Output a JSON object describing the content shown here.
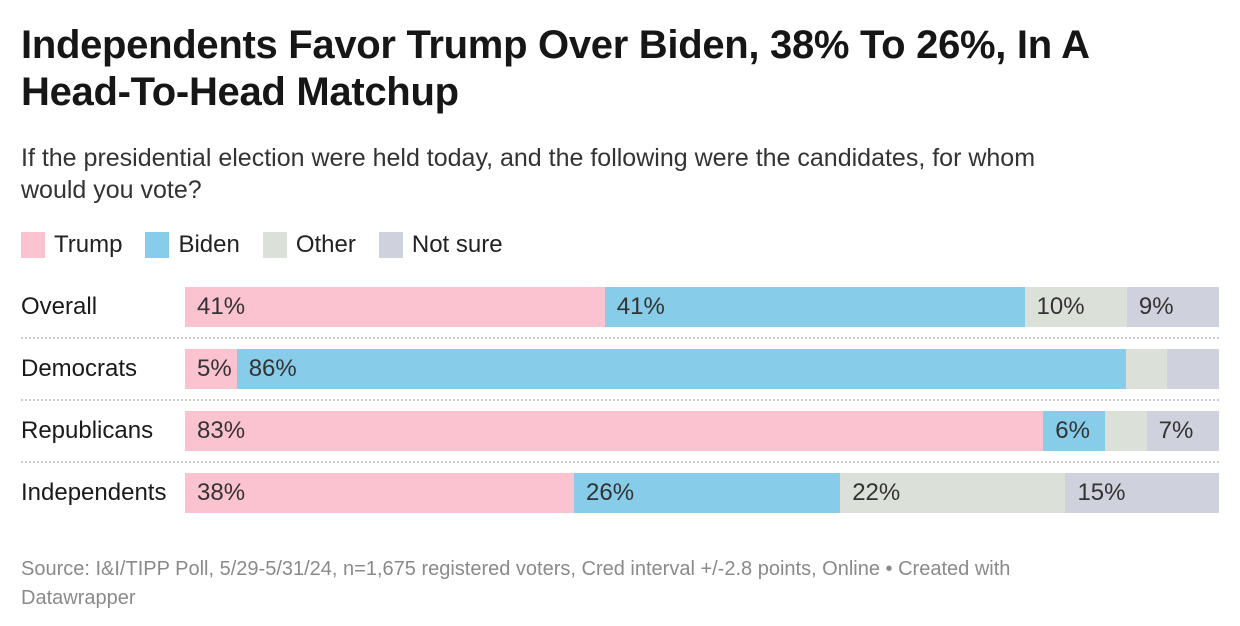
{
  "chart_data": {
    "type": "bar",
    "stacked": true,
    "orientation": "horizontal",
    "title": "Independents Favor Trump Over Biden, 38% To 26%, In A\nHead-To-Head Matchup",
    "subtitle": "If the presidential election were held today, and the following were the candidates, for whom\nwould you vote?",
    "unit": "%",
    "xlim": [
      0,
      100
    ],
    "legend_position": "top",
    "grid": false,
    "categories": [
      "Overall",
      "Democrats",
      "Republicans",
      "Independents"
    ],
    "series": [
      {
        "name": "Trump",
        "color": "#fbc2d0",
        "values": [
          41,
          5,
          83,
          38
        ],
        "labels": [
          "41%",
          "5%",
          "83%",
          "38%"
        ]
      },
      {
        "name": "Biden",
        "color": "#87cce8",
        "values": [
          41,
          86,
          6,
          26
        ],
        "labels": [
          "41%",
          "86%",
          "6%",
          "26%"
        ]
      },
      {
        "name": "Other",
        "color": "#dbe1d9",
        "values": [
          10,
          4,
          4,
          22
        ],
        "labels": [
          "10%",
          "",
          "",
          "22%"
        ]
      },
      {
        "name": "Not sure",
        "color": "#cfd1dd",
        "values": [
          9,
          5,
          7,
          15
        ],
        "labels": [
          "9%",
          "",
          "7%",
          "15%"
        ]
      }
    ]
  },
  "footer": {
    "text": "Source: I&I/TIPP Poll, 5/29-5/31/24, n=1,675 registered voters, Cred interval +/-2.8 points, Online • Created with\nDatawrapper"
  }
}
